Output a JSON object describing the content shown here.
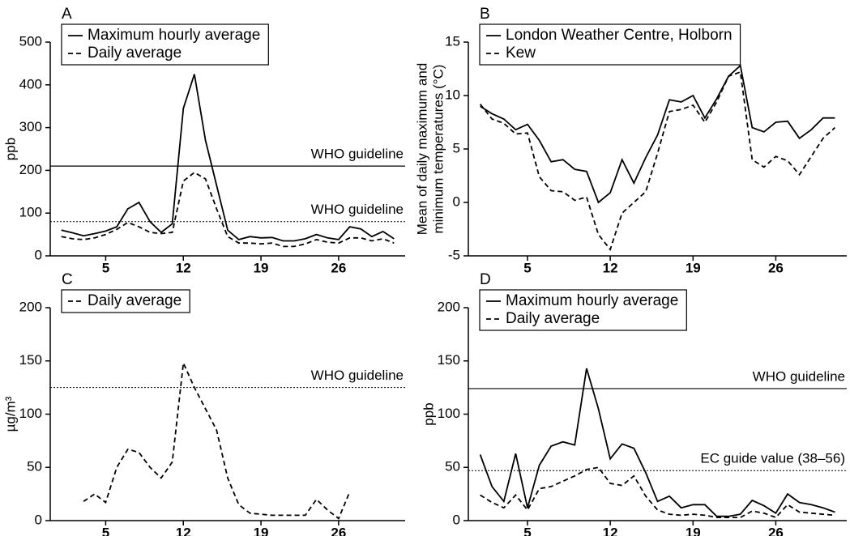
{
  "chart_data": [
    {
      "type": "line",
      "panel_label": "A",
      "ylabel": [
        "ppb"
      ],
      "x": [
        1,
        2,
        3,
        4,
        5,
        6,
        7,
        8,
        9,
        10,
        11,
        12,
        13,
        14,
        15,
        16,
        17,
        18,
        19,
        20,
        21,
        22,
        23,
        24,
        25,
        26,
        27,
        28,
        29,
        30,
        31
      ],
      "xlim": [
        0,
        32
      ],
      "xticks": [
        5,
        12,
        19,
        26
      ],
      "ylim": [
        0,
        500
      ],
      "yticks": [
        0,
        100,
        200,
        300,
        400,
        500
      ],
      "series": [
        {
          "name": "Maximum hourly average",
          "color": "#000",
          "dash": "solid",
          "values": [
            60,
            54,
            47,
            52,
            58,
            68,
            110,
            125,
            80,
            55,
            75,
            345,
            425,
            270,
            165,
            60,
            38,
            45,
            42,
            43,
            35,
            35,
            40,
            50,
            42,
            38,
            68,
            63,
            45,
            57,
            40
          ]
        },
        {
          "name": "Daily average",
          "color": "#000",
          "dash": "dashed",
          "values": [
            45,
            40,
            38,
            42,
            50,
            62,
            78,
            68,
            55,
            52,
            55,
            175,
            195,
            180,
            110,
            45,
            30,
            30,
            28,
            30,
            22,
            22,
            28,
            38,
            32,
            30,
            42,
            42,
            35,
            40,
            30
          ]
        }
      ],
      "reference_lines": [
        {
          "value": 210,
          "label": "WHO guideline",
          "style": "solid"
        },
        {
          "value": 80,
          "label": "WHO guideline",
          "style": "dotted"
        }
      ]
    },
    {
      "type": "line",
      "panel_label": "B",
      "ylabel": [
        "Mean of daily maximum and",
        "minimum temperatures (°C)"
      ],
      "x": [
        1,
        2,
        3,
        4,
        5,
        6,
        7,
        8,
        9,
        10,
        11,
        12,
        13,
        14,
        15,
        16,
        17,
        18,
        19,
        20,
        21,
        22,
        23,
        24,
        25,
        26,
        27,
        28,
        29,
        30,
        31
      ],
      "xlim": [
        0,
        32
      ],
      "xticks": [
        5,
        12,
        19,
        26
      ],
      "ylim": [
        -5,
        15
      ],
      "yticks": [
        -5,
        0,
        5,
        10,
        15
      ],
      "series": [
        {
          "name": "London Weather Centre, Holborn",
          "color": "#000",
          "dash": "solid",
          "values": [
            9,
            8.3,
            7.8,
            6.8,
            7.3,
            5.8,
            3.8,
            4,
            3.1,
            2.9,
            0,
            0.9,
            4,
            1.8,
            4.2,
            6.3,
            9.6,
            9.4,
            10,
            7.9,
            9.7,
            11.8,
            12.8,
            7,
            6.6,
            7.5,
            7.6,
            6,
            6.8,
            7.9,
            7.9
          ]
        },
        {
          "name": "Kew",
          "color": "#000",
          "dash": "dashed",
          "values": [
            9.2,
            7.8,
            7.4,
            6.4,
            6.5,
            2.4,
            1.1,
            1,
            0.2,
            0.5,
            -3,
            -4.4,
            -1,
            0,
            1,
            4.6,
            8.5,
            8.7,
            9.1,
            7.5,
            9.4,
            11.8,
            12.2,
            4,
            3.3,
            4.3,
            3.9,
            2.6,
            4.3,
            6,
            7
          ]
        }
      ],
      "reference_lines": []
    },
    {
      "type": "line",
      "panel_label": "C",
      "ylabel": [
        "µg/m³"
      ],
      "x": [
        3,
        4,
        5,
        6,
        7,
        8,
        9,
        10,
        11,
        12,
        13,
        14,
        15,
        16,
        17,
        18,
        19,
        20,
        21,
        22,
        23,
        24,
        25,
        26,
        27
      ],
      "xlim": [
        0,
        32
      ],
      "xticks": [
        5,
        12,
        19,
        26
      ],
      "ylim": [
        0,
        200
      ],
      "yticks": [
        0,
        50,
        100,
        150,
        200
      ],
      "series": [
        {
          "name": "Daily average",
          "color": "#000",
          "dash": "dashed",
          "values": [
            18,
            25,
            17,
            50,
            67,
            64,
            50,
            40,
            55,
            148,
            125,
            105,
            85,
            40,
            15,
            7,
            6,
            5,
            5,
            5,
            5,
            20,
            10,
            2,
            27
          ]
        }
      ],
      "reference_lines": [
        {
          "value": 125,
          "label": "WHO guideline",
          "style": "dotted"
        }
      ]
    },
    {
      "type": "line",
      "panel_label": "D",
      "ylabel": [
        "ppb"
      ],
      "x": [
        1,
        2,
        3,
        4,
        5,
        6,
        7,
        8,
        9,
        10,
        11,
        12,
        13,
        14,
        15,
        16,
        17,
        18,
        19,
        20,
        21,
        22,
        23,
        24,
        25,
        26,
        27,
        28,
        29,
        30,
        31
      ],
      "xlim": [
        0,
        32
      ],
      "xticks": [
        5,
        12,
        19,
        26
      ],
      "ylim": [
        0,
        200
      ],
      "yticks": [
        0,
        50,
        100,
        150,
        200
      ],
      "series": [
        {
          "name": "Maximum hourly average",
          "color": "#000",
          "dash": "solid",
          "values": [
            62,
            32,
            18,
            63,
            12,
            52,
            70,
            74,
            71,
            143,
            105,
            58,
            72,
            68,
            45,
            18,
            23,
            12,
            15,
            15,
            4,
            4,
            6,
            19,
            14,
            7,
            25,
            17,
            15,
            12,
            8
          ]
        },
        {
          "name": "Daily average",
          "color": "#000",
          "dash": "dashed",
          "values": [
            24,
            17,
            12,
            24,
            10,
            30,
            32,
            37,
            42,
            48,
            50,
            35,
            33,
            42,
            23,
            10,
            6,
            5,
            6,
            5,
            3,
            3,
            3,
            9,
            7,
            3,
            15,
            8,
            7,
            6,
            5
          ]
        }
      ],
      "reference_lines": [
        {
          "value": 124,
          "label": "WHO guideline",
          "style": "solid"
        },
        {
          "value": 47,
          "label": "EC guide value (38–56)",
          "style": "dotted"
        }
      ]
    }
  ]
}
